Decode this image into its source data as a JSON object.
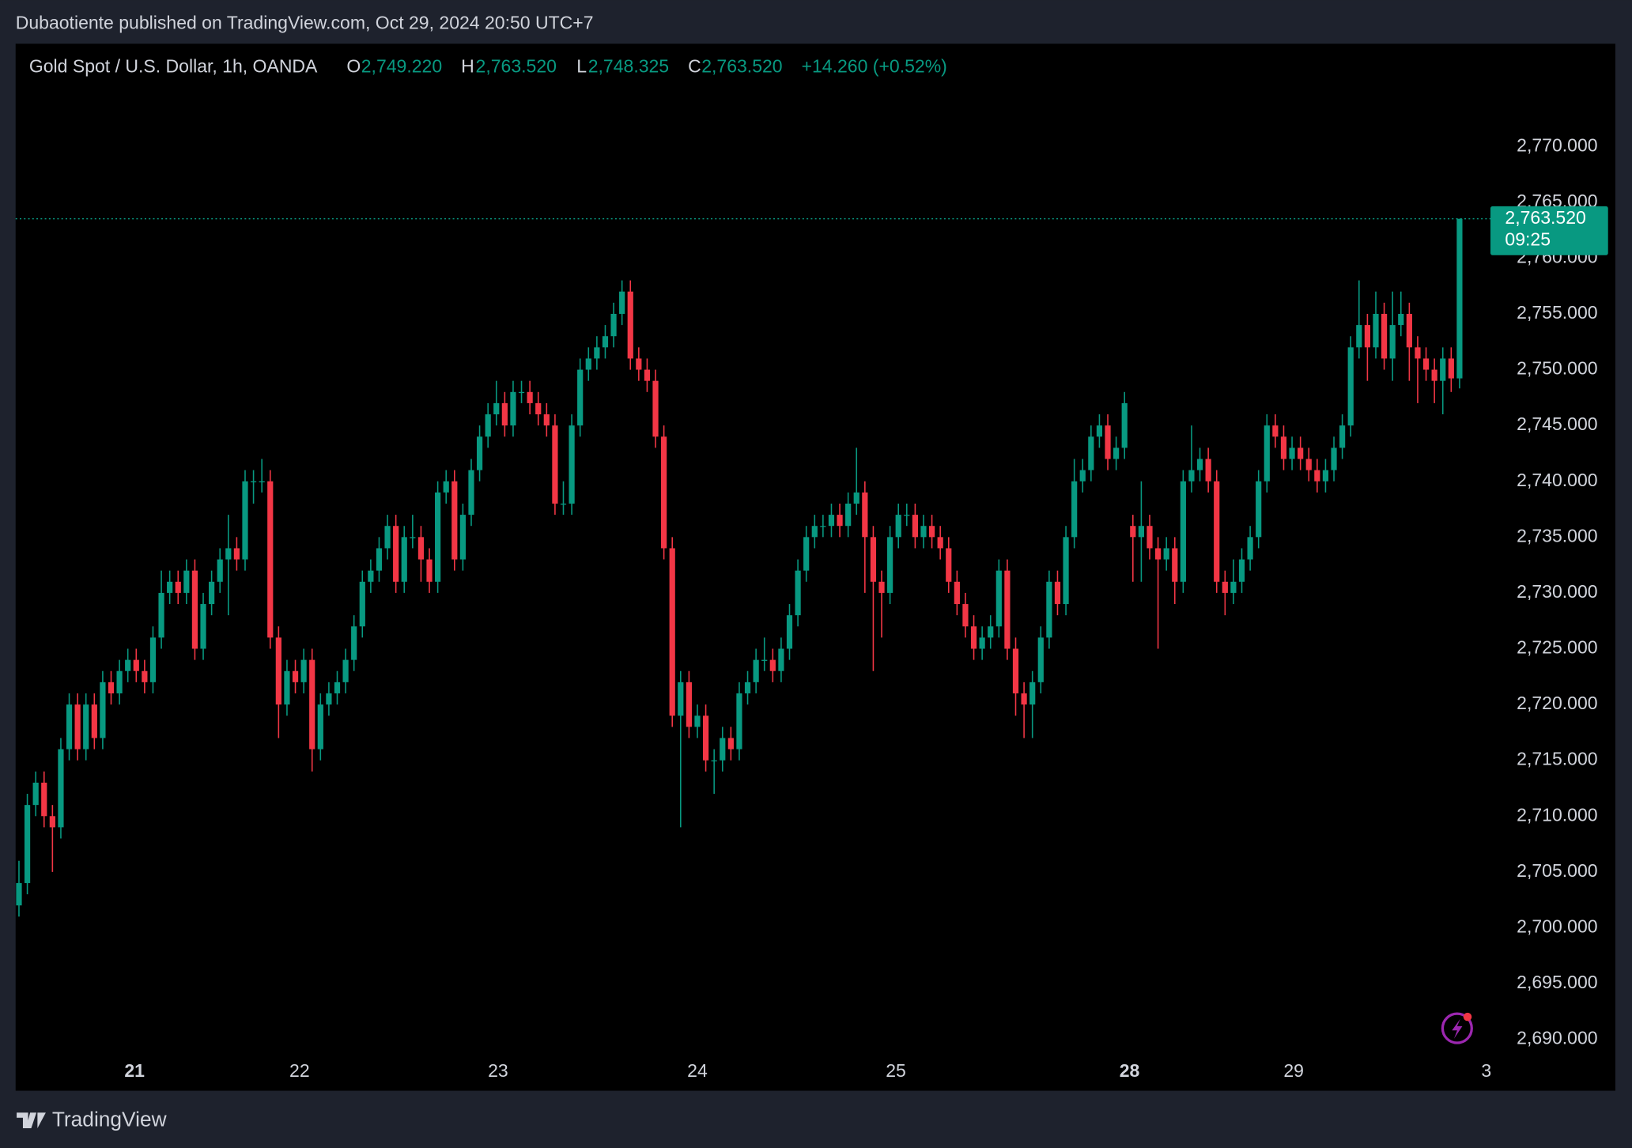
{
  "header": {
    "published": "Dubaotiente published on TradingView.com, Oct 29, 2024 20:50 UTC+7",
    "symbol": "Gold Spot / U.S. Dollar, 1h, OANDA",
    "open_label": "O",
    "open": "2,749.220",
    "high_label": "H",
    "high": "2,763.520",
    "low_label": "L",
    "low": "2,748.325",
    "close_label": "C",
    "close": "2,763.520",
    "change": "+14.260 (+0.52%)"
  },
  "footer": {
    "brand": "TradingView"
  },
  "chart_data": {
    "type": "candlestick",
    "up_color": "#089981",
    "down_color": "#f23645",
    "ylim": [
      2685.4,
      2779.2
    ],
    "yticks": [
      {
        "value": 2690,
        "label": "2,690.000"
      },
      {
        "value": 2695,
        "label": "2,695.000"
      },
      {
        "value": 2700,
        "label": "2,700.000"
      },
      {
        "value": 2705,
        "label": "2,705.000"
      },
      {
        "value": 2710,
        "label": "2,710.000"
      },
      {
        "value": 2715,
        "label": "2,715.000"
      },
      {
        "value": 2720,
        "label": "2,720.000"
      },
      {
        "value": 2725,
        "label": "2,725.000"
      },
      {
        "value": 2730,
        "label": "2,730.000"
      },
      {
        "value": 2735,
        "label": "2,735.000"
      },
      {
        "value": 2740,
        "label": "2,740.000"
      },
      {
        "value": 2745,
        "label": "2,745.000"
      },
      {
        "value": 2750,
        "label": "2,750.000"
      },
      {
        "value": 2755,
        "label": "2,755.000"
      },
      {
        "value": 2760,
        "label": "2,760.000"
      },
      {
        "value": 2765,
        "label": "2,765.000"
      },
      {
        "value": 2770,
        "label": "2,770.000"
      }
    ],
    "xlim": [
      -0.4,
      190.6
    ],
    "xticks": [
      {
        "value": 13.8,
        "label": "21",
        "bold": true
      },
      {
        "value": 33.5,
        "label": "22"
      },
      {
        "value": 57.2,
        "label": "23"
      },
      {
        "value": 81,
        "label": "24"
      },
      {
        "value": 104.7,
        "label": "25"
      },
      {
        "value": 132.6,
        "label": "28",
        "bold": true
      },
      {
        "value": 152.2,
        "label": "29"
      },
      {
        "value": 175.2,
        "label": "3"
      }
    ],
    "last_price": {
      "label": "2,763.520",
      "countdown": "09:25"
    },
    "candles": [
      [
        2702,
        2706,
        2701,
        2704
      ],
      [
        2704,
        2712,
        2703,
        2711
      ],
      [
        2711,
        2714,
        2710,
        2713
      ],
      [
        2713,
        2714,
        2709,
        2710
      ],
      [
        2710,
        2711,
        2705,
        2709
      ],
      [
        2709,
        2717,
        2708,
        2716
      ],
      [
        2716,
        2721,
        2715,
        2720
      ],
      [
        2720,
        2721,
        2715,
        2716
      ],
      [
        2716,
        2721,
        2715,
        2720
      ],
      [
        2720,
        2721,
        2716,
        2717
      ],
      [
        2717,
        2723,
        2716,
        2722
      ],
      [
        2722,
        2723,
        2720,
        2721
      ],
      [
        2721,
        2724,
        2720,
        2723
      ],
      [
        2723,
        2725,
        2722,
        2724
      ],
      [
        2724,
        2725,
        2722,
        2723
      ],
      [
        2723,
        2724,
        2721,
        2722
      ],
      [
        2722,
        2727,
        2721,
        2726
      ],
      [
        2726,
        2732,
        2725,
        2730
      ],
      [
        2730,
        2732,
        2729,
        2731
      ],
      [
        2731,
        2732,
        2729,
        2730
      ],
      [
        2730,
        2733,
        2729,
        2732
      ],
      [
        2732,
        2733,
        2724,
        2725
      ],
      [
        2725,
        2730,
        2724,
        2729
      ],
      [
        2729,
        2732,
        2728,
        2731
      ],
      [
        2731,
        2734,
        2730,
        2733
      ],
      [
        2733,
        2737,
        2728,
        2734
      ],
      [
        2734,
        2735,
        2732,
        2733
      ],
      [
        2733,
        2741,
        2732,
        2740
      ],
      [
        2740,
        2741,
        2738,
        2740
      ],
      [
        2740,
        2742,
        2739,
        2740
      ],
      [
        2740,
        2741,
        2725,
        2726
      ],
      [
        2726,
        2727,
        2717,
        2720
      ],
      [
        2720,
        2724,
        2719,
        2723
      ],
      [
        2723,
        2724,
        2721,
        2722
      ],
      [
        2722,
        2725,
        2721,
        2724
      ],
      [
        2724,
        2725,
        2714,
        2716
      ],
      [
        2716,
        2721,
        2715,
        2720
      ],
      [
        2720,
        2722,
        2719,
        2721
      ],
      [
        2721,
        2723,
        2720,
        2722
      ],
      [
        2722,
        2725,
        2721,
        2724
      ],
      [
        2724,
        2728,
        2723,
        2727
      ],
      [
        2727,
        2732,
        2726,
        2731
      ],
      [
        2731,
        2733,
        2730,
        2732
      ],
      [
        2732,
        2735,
        2731,
        2734
      ],
      [
        2734,
        2737,
        2733,
        2736
      ],
      [
        2736,
        2737,
        2730,
        2731
      ],
      [
        2731,
        2736,
        2730,
        2735
      ],
      [
        2735,
        2737,
        2734,
        2735
      ],
      [
        2735,
        2736,
        2731,
        2733
      ],
      [
        2733,
        2734,
        2730,
        2731
      ],
      [
        2731,
        2740,
        2730,
        2739
      ],
      [
        2739,
        2741,
        2738,
        2740
      ],
      [
        2740,
        2741,
        2732,
        2733
      ],
      [
        2733,
        2738,
        2732,
        2737
      ],
      [
        2737,
        2742,
        2736,
        2741
      ],
      [
        2741,
        2745,
        2740,
        2744
      ],
      [
        2744,
        2747,
        2743,
        2746
      ],
      [
        2746,
        2749,
        2745,
        2747
      ],
      [
        2747,
        2748,
        2744,
        2745
      ],
      [
        2745,
        2749,
        2744,
        2748
      ],
      [
        2748,
        2749,
        2747,
        2748
      ],
      [
        2748,
        2749,
        2746,
        2747
      ],
      [
        2747,
        2748,
        2745,
        2746
      ],
      [
        2746,
        2747,
        2744,
        2745
      ],
      [
        2745,
        2746,
        2737,
        2738
      ],
      [
        2738,
        2740,
        2737,
        2738
      ],
      [
        2738,
        2746,
        2737,
        2745
      ],
      [
        2745,
        2751,
        2744,
        2750
      ],
      [
        2750,
        2752,
        2749,
        2751
      ],
      [
        2751,
        2753,
        2750,
        2752
      ],
      [
        2752,
        2754,
        2751,
        2753
      ],
      [
        2753,
        2756,
        2752,
        2755
      ],
      [
        2755,
        2758,
        2754,
        2757
      ],
      [
        2757,
        2758,
        2750,
        2751
      ],
      [
        2751,
        2752,
        2749,
        2750
      ],
      [
        2750,
        2751,
        2748,
        2749
      ],
      [
        2749,
        2750,
        2743,
        2744
      ],
      [
        2744,
        2745,
        2733,
        2734
      ],
      [
        2734,
        2735,
        2718,
        2719
      ],
      [
        2719,
        2723,
        2709,
        2722
      ],
      [
        2722,
        2723,
        2717,
        2718
      ],
      [
        2718,
        2720,
        2717,
        2719
      ],
      [
        2719,
        2720,
        2714,
        2715
      ],
      [
        2715,
        2716,
        2712,
        2715
      ],
      [
        2715,
        2718,
        2714,
        2717
      ],
      [
        2717,
        2718,
        2715,
        2716
      ],
      [
        2716,
        2722,
        2715,
        2721
      ],
      [
        2721,
        2723,
        2720,
        2722
      ],
      [
        2722,
        2725,
        2721,
        2724
      ],
      [
        2724,
        2726,
        2723,
        2724
      ],
      [
        2724,
        2725,
        2722,
        2723
      ],
      [
        2723,
        2726,
        2722,
        2725
      ],
      [
        2725,
        2729,
        2724,
        2728
      ],
      [
        2728,
        2733,
        2727,
        2732
      ],
      [
        2732,
        2736,
        2731,
        2735
      ],
      [
        2735,
        2737,
        2734,
        2736
      ],
      [
        2736,
        2737,
        2735,
        2736
      ],
      [
        2736,
        2738,
        2735,
        2737
      ],
      [
        2737,
        2738,
        2735,
        2736
      ],
      [
        2736,
        2739,
        2735,
        2738
      ],
      [
        2738,
        2743,
        2737,
        2739
      ],
      [
        2739,
        2740,
        2730,
        2735
      ],
      [
        2735,
        2736,
        2723,
        2731
      ],
      [
        2731,
        2732,
        2726,
        2730
      ],
      [
        2730,
        2736,
        2729,
        2735
      ],
      [
        2735,
        2738,
        2734,
        2737
      ],
      [
        2737,
        2738,
        2736,
        2737
      ],
      [
        2737,
        2738,
        2734,
        2735
      ],
      [
        2735,
        2737,
        2734,
        2736
      ],
      [
        2736,
        2737,
        2734,
        2735
      ],
      [
        2735,
        2736,
        2733,
        2734
      ],
      [
        2734,
        2735,
        2730,
        2731
      ],
      [
        2731,
        2732,
        2728,
        2729
      ],
      [
        2729,
        2730,
        2726,
        2727
      ],
      [
        2727,
        2728,
        2724,
        2725
      ],
      [
        2725,
        2727,
        2724,
        2726
      ],
      [
        2726,
        2728,
        2725,
        2727
      ],
      [
        2727,
        2733,
        2726,
        2732
      ],
      [
        2732,
        2733,
        2724,
        2725
      ],
      [
        2725,
        2726,
        2719,
        2721
      ],
      [
        2721,
        2722,
        2717,
        2720
      ],
      [
        2720,
        2723,
        2717,
        2722
      ],
      [
        2722,
        2727,
        2721,
        2726
      ],
      [
        2726,
        2732,
        2725,
        2731
      ],
      [
        2731,
        2732,
        2728,
        2729
      ],
      [
        2729,
        2736,
        2728,
        2735
      ],
      [
        2735,
        2742,
        2734,
        2740
      ],
      [
        2740,
        2742,
        2739,
        2741
      ],
      [
        2741,
        2745,
        2740,
        2744
      ],
      [
        2744,
        2746,
        2743,
        2745
      ],
      [
        2745,
        2746,
        2741,
        2742
      ],
      [
        2742,
        2744,
        2741,
        2743
      ],
      [
        2743,
        2748,
        2742,
        2747
      ],
      [
        2736,
        2737,
        2731,
        2735
      ],
      [
        2735,
        2740,
        2731,
        2736
      ],
      [
        2736,
        2737,
        2733,
        2734
      ],
      [
        2734,
        2735,
        2725,
        2733
      ],
      [
        2733,
        2735,
        2732,
        2734
      ],
      [
        2734,
        2735,
        2729,
        2731
      ],
      [
        2731,
        2741,
        2730,
        2740
      ],
      [
        2740,
        2745,
        2739,
        2741
      ],
      [
        2741,
        2743,
        2740,
        2742
      ],
      [
        2742,
        2743,
        2739,
        2740
      ],
      [
        2740,
        2741,
        2730,
        2731
      ],
      [
        2731,
        2732,
        2728,
        2730
      ],
      [
        2730,
        2733,
        2729,
        2731
      ],
      [
        2731,
        2734,
        2730,
        2733
      ],
      [
        2733,
        2736,
        2732,
        2735
      ],
      [
        2735,
        2741,
        2734,
        2740
      ],
      [
        2740,
        2746,
        2739,
        2745
      ],
      [
        2745,
        2746,
        2743,
        2744
      ],
      [
        2744,
        2745,
        2741,
        2742
      ],
      [
        2742,
        2744,
        2741,
        2743
      ],
      [
        2743,
        2744,
        2741,
        2742
      ],
      [
        2742,
        2743,
        2740,
        2741
      ],
      [
        2741,
        2742,
        2739,
        2740
      ],
      [
        2740,
        2742,
        2739,
        2741
      ],
      [
        2741,
        2744,
        2740,
        2743
      ],
      [
        2743,
        2746,
        2742,
        2745
      ],
      [
        2745,
        2753,
        2744,
        2752
      ],
      [
        2752,
        2758,
        2751,
        2754
      ],
      [
        2754,
        2755,
        2749,
        2752
      ],
      [
        2752,
        2757,
        2751,
        2755
      ],
      [
        2755,
        2756,
        2750,
        2751
      ],
      [
        2751,
        2757,
        2749,
        2754
      ],
      [
        2754,
        2757,
        2753,
        2755
      ],
      [
        2755,
        2756,
        2749,
        2752
      ],
      [
        2752,
        2753,
        2747,
        2751
      ],
      [
        2751,
        2752,
        2749,
        2750
      ],
      [
        2750,
        2751,
        2747,
        2749
      ],
      [
        2749,
        2752,
        2746,
        2751
      ],
      [
        2751,
        2752,
        2748,
        2749.22
      ],
      [
        2749.22,
        2763.52,
        2748.325,
        2763.52
      ]
    ]
  }
}
